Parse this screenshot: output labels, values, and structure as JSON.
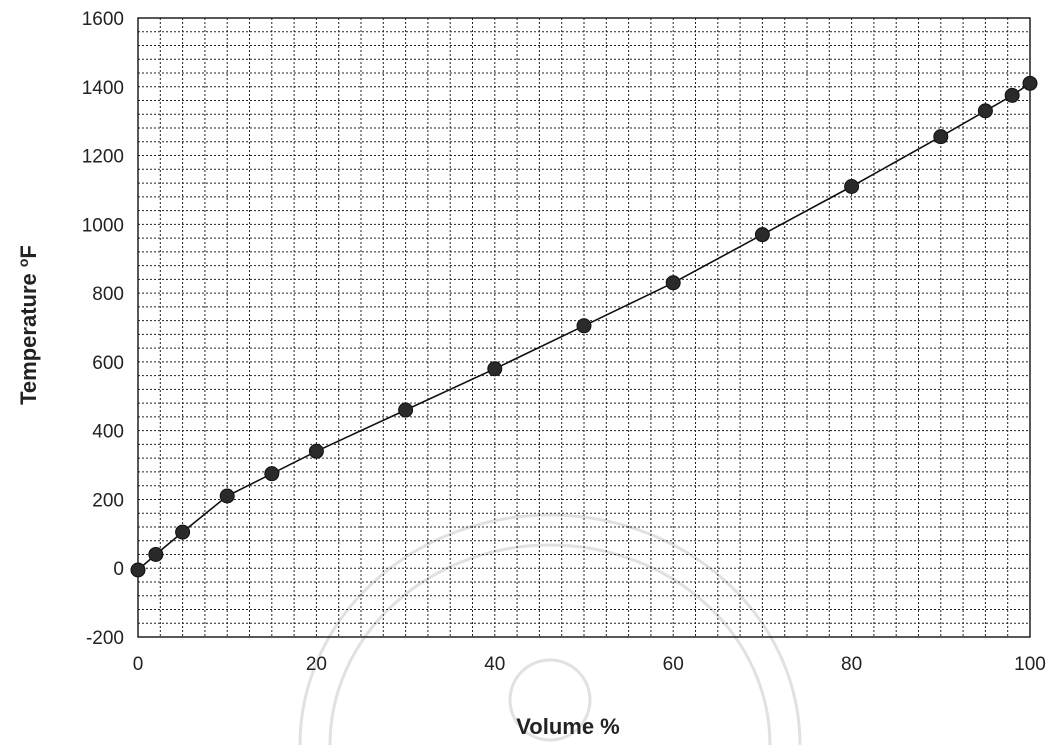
{
  "chart_data": {
    "type": "line",
    "xlabel": "Volume %",
    "ylabel": "Temperature °F",
    "ylabel_parts": [
      "Temperature ",
      "o",
      "F"
    ],
    "xlim": [
      0,
      100
    ],
    "ylim": [
      -200,
      1600
    ],
    "x_ticks": [
      "0",
      "20",
      "40",
      "60",
      "80",
      "100"
    ],
    "y_ticks": [
      "-200",
      "0",
      "200",
      "400",
      "600",
      "800",
      "1000",
      "1200",
      "1400",
      "1600"
    ],
    "x_tick_values": [
      0,
      20,
      40,
      60,
      80,
      100
    ],
    "y_tick_values": [
      -200,
      0,
      200,
      400,
      600,
      800,
      1000,
      1200,
      1400,
      1600
    ],
    "grid": true,
    "series": [
      {
        "x": [
          0,
          2,
          5,
          10,
          15,
          20,
          30,
          40,
          50,
          60,
          70,
          80,
          90,
          95,
          98,
          100
        ],
        "y": [
          -5,
          40,
          105,
          210,
          275,
          340,
          460,
          580,
          705,
          830,
          970,
          1110,
          1255,
          1330,
          1375,
          1410
        ],
        "color": "#111111",
        "marker": "circle"
      }
    ]
  }
}
